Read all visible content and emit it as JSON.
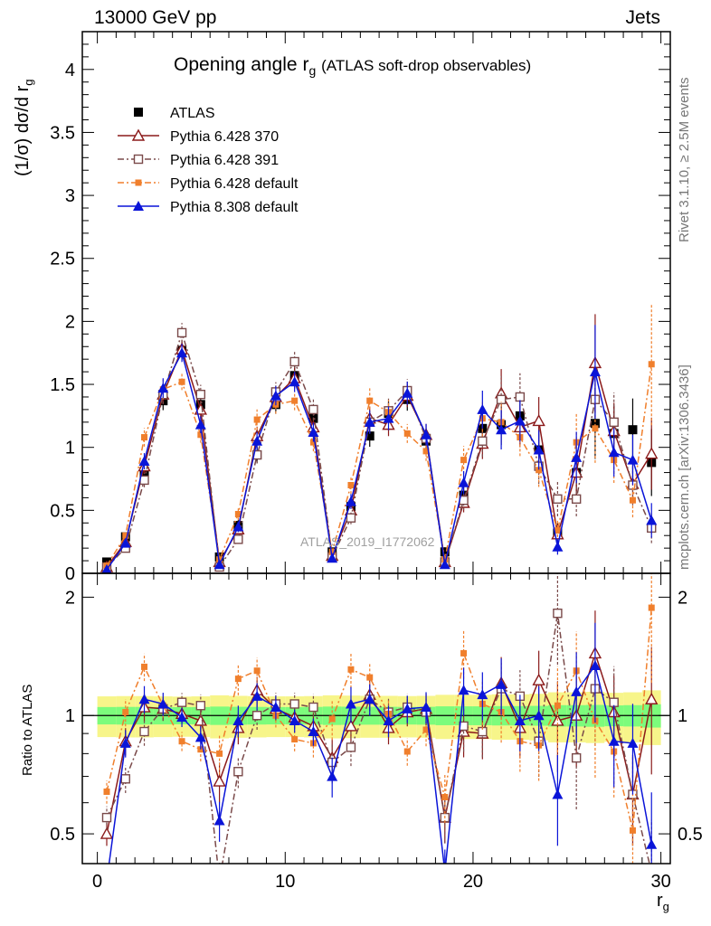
{
  "header": {
    "left": "13000 GeV pp",
    "right": "Jets"
  },
  "side_labels": {
    "rivet": "Rivet 3.1.10, ≥ 2.5M events",
    "mcplots": "mcplots.cern.ch [arXiv:1306.3436]"
  },
  "watermark": "ATLAS_2019_I1772062",
  "chart_data": [
    {
      "type": "line",
      "title": "Opening angle r",
      "title_subscript": "g",
      "title_suffix": "(ATLAS soft-drop observables)",
      "ylabel": "(1/σ) dσ/d r",
      "ylabel_subscript": "g",
      "xlim": [
        -0.8,
        30.5
      ],
      "ylim": [
        0,
        4.3
      ],
      "y_ticks": [
        0,
        0.5,
        1,
        1.5,
        2,
        2.5,
        3,
        3.5,
        4
      ],
      "y_tick_labels": [
        "0",
        "0.5",
        "1",
        "1.5",
        "2",
        "2.5",
        "3",
        "3.5",
        "4"
      ],
      "legend_position": "top-left",
      "x": [
        0.5,
        1.5,
        2.5,
        3.5,
        4.5,
        5.5,
        6.5,
        7.5,
        8.5,
        9.5,
        10.5,
        11.5,
        12.5,
        13.5,
        14.5,
        15.5,
        16.5,
        17.5,
        18.5,
        19.5,
        20.5,
        21.5,
        22.5,
        23.5,
        24.5,
        25.5,
        26.5,
        27.5,
        28.5,
        29.5
      ],
      "series": [
        {
          "name": "ATLAS",
          "color": "#000000",
          "marker": "filled-square",
          "line": "none",
          "values": [
            0.09,
            0.29,
            0.81,
            1.37,
            1.77,
            1.34,
            0.13,
            0.38,
            0.94,
            1.34,
            1.57,
            1.23,
            0.17,
            0.53,
            1.09,
            1.27,
            1.38,
            1.05,
            0.17,
            0.62,
            1.15,
            1.18,
            1.25,
            0.98,
            0.32,
            0.8,
            1.19,
            1.11,
            1.14,
            0.88
          ]
        },
        {
          "name": "Pythia 6.428 370",
          "color": "#8b1a1a",
          "marker": "open-triangle",
          "line": "solid",
          "values": [
            0.05,
            0.25,
            0.85,
            1.42,
            1.78,
            1.3,
            0.09,
            0.35,
            1.09,
            1.4,
            1.55,
            1.16,
            0.14,
            0.5,
            1.23,
            1.18,
            1.41,
            1.1,
            0.09,
            0.56,
            1.03,
            1.43,
            1.16,
            1.21,
            0.31,
            0.8,
            1.67,
            1.13,
            0.71,
            0.95
          ]
        },
        {
          "name": "Pythia 6.428 391",
          "color": "#7a4a4a",
          "marker": "open-square",
          "line": "dash-dot",
          "values": [
            0.05,
            0.2,
            0.74,
            1.42,
            1.91,
            1.42,
            0.05,
            0.27,
            0.94,
            1.44,
            1.68,
            1.3,
            0.13,
            0.44,
            1.2,
            1.29,
            1.45,
            1.07,
            0.09,
            0.58,
            1.05,
            1.38,
            1.4,
            0.85,
            0.59,
            0.59,
            1.38,
            1.2,
            0.7,
            0.36
          ]
        },
        {
          "name": "Pythia 6.428 default",
          "color": "#f07f2c",
          "marker": "filled-square-small",
          "line": "dash-dot",
          "values": [
            0.06,
            0.3,
            1.08,
            1.46,
            1.52,
            1.1,
            0.11,
            0.47,
            1.22,
            1.34,
            1.37,
            1.04,
            0.17,
            0.7,
            1.37,
            1.28,
            1.11,
            0.97,
            0.11,
            0.9,
            1.23,
            1.2,
            1.08,
            0.82,
            0.34,
            1.04,
            1.15,
            0.9,
            0.58,
            1.66
          ]
        },
        {
          "name": "Pythia 8.308 default",
          "color": "#0a14d8",
          "marker": "filled-triangle",
          "line": "solid",
          "values": [
            0.03,
            0.24,
            0.89,
            1.47,
            1.75,
            1.18,
            0.07,
            0.37,
            1.05,
            1.41,
            1.52,
            1.12,
            0.12,
            0.57,
            1.2,
            1.23,
            1.43,
            1.1,
            0.07,
            0.72,
            1.3,
            1.14,
            1.21,
            0.98,
            0.21,
            0.92,
            1.6,
            0.96,
            0.9,
            0.42
          ]
        }
      ]
    },
    {
      "type": "line",
      "ylabel": "Ratio to ATLAS",
      "xlabel": "r",
      "xlabel_subscript": "g",
      "xlim": [
        -0.8,
        30.5
      ],
      "ylim": [
        0.42,
        2.3
      ],
      "y_scale": "log",
      "x_ticks": [
        0,
        10,
        20,
        30
      ],
      "x_tick_labels": [
        "0",
        "10",
        "20",
        "30"
      ],
      "y_ticks": [
        0.5,
        1,
        2
      ],
      "y_tick_labels": [
        "0.5",
        "1",
        "2"
      ],
      "reference_band": {
        "inner_color": "#7cfc7c",
        "outer_color": "#f7f58a",
        "inner_half_width": 0.06,
        "outer_half_width": 0.14
      },
      "x": [
        0.5,
        1.5,
        2.5,
        3.5,
        4.5,
        5.5,
        6.5,
        7.5,
        8.5,
        9.5,
        10.5,
        11.5,
        12.5,
        13.5,
        14.5,
        15.5,
        16.5,
        17.5,
        18.5,
        19.5,
        20.5,
        21.5,
        22.5,
        23.5,
        24.5,
        25.5,
        26.5,
        27.5,
        28.5,
        29.5
      ],
      "series": [
        {
          "name": "Pythia 6.428 370",
          "values": [
            0.5,
            0.86,
            1.05,
            1.04,
            1.01,
            0.97,
            0.68,
            0.93,
            1.16,
            1.04,
            0.99,
            0.94,
            0.78,
            0.94,
            1.13,
            0.93,
            1.02,
            1.04,
            0.55,
            0.91,
            0.9,
            1.21,
            0.93,
            1.23,
            0.97,
            1.0,
            1.44,
            1.02,
            0.63,
            1.1
          ]
        },
        {
          "name": "Pythia 6.428 391",
          "values": [
            0.55,
            0.69,
            0.91,
            1.04,
            1.08,
            1.06,
            0.38,
            0.72,
            1.0,
            1.07,
            1.07,
            1.05,
            0.76,
            0.83,
            1.1,
            1.02,
            1.05,
            1.02,
            0.55,
            0.94,
            0.91,
            1.17,
            1.12,
            0.86,
            1.82,
            0.78,
            1.17,
            1.08,
            0.63,
            0.4
          ]
        },
        {
          "name": "Pythia 6.428 default",
          "values": [
            0.64,
            1.02,
            1.33,
            1.06,
            0.86,
            0.82,
            0.8,
            1.24,
            1.3,
            1.0,
            0.87,
            0.85,
            0.98,
            1.31,
            1.25,
            1.01,
            0.81,
            0.92,
            0.62,
            1.44,
            1.07,
            1.02,
            0.86,
            0.84,
            1.06,
            1.3,
            0.97,
            0.81,
            0.51,
            1.88
          ]
        },
        {
          "name": "Pythia 8.308 default",
          "values": [
            0.38,
            0.85,
            1.1,
            1.07,
            0.99,
            0.88,
            0.54,
            0.97,
            1.12,
            1.05,
            0.97,
            0.91,
            0.7,
            1.07,
            1.1,
            0.97,
            1.04,
            1.05,
            0.4,
            1.16,
            1.13,
            1.2,
            0.97,
            1.0,
            0.63,
            1.15,
            1.34,
            0.86,
            0.85,
            0.47
          ]
        }
      ]
    }
  ]
}
